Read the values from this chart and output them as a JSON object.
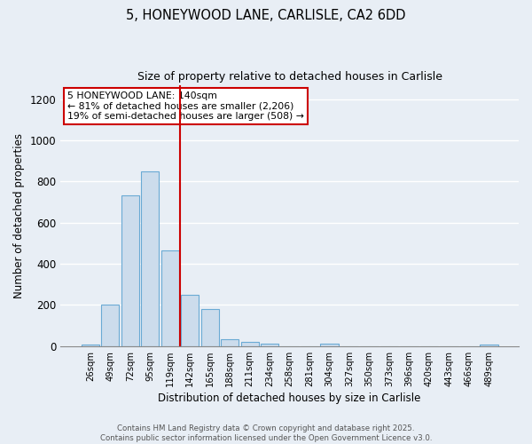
{
  "title_line1": "5, HONEYWOOD LANE, CARLISLE, CA2 6DD",
  "title_line2": "Size of property relative to detached houses in Carlisle",
  "xlabel": "Distribution of detached houses by size in Carlisle",
  "ylabel": "Number of detached properties",
  "categories": [
    "26sqm",
    "49sqm",
    "72sqm",
    "95sqm",
    "119sqm",
    "142sqm",
    "165sqm",
    "188sqm",
    "211sqm",
    "234sqm",
    "258sqm",
    "281sqm",
    "304sqm",
    "327sqm",
    "350sqm",
    "373sqm",
    "396sqm",
    "420sqm",
    "443sqm",
    "466sqm",
    "489sqm"
  ],
  "values": [
    10,
    200,
    735,
    850,
    465,
    250,
    180,
    35,
    20,
    12,
    0,
    0,
    12,
    0,
    0,
    0,
    0,
    0,
    0,
    0,
    8
  ],
  "bar_color": "#ccdcec",
  "bar_edge_color": "#6aaad4",
  "vline_color": "#cc0000",
  "vline_x": 4.5,
  "annotation_text": "5 HONEYWOOD LANE: 140sqm\n← 81% of detached houses are smaller (2,206)\n19% of semi-detached houses are larger (508) →",
  "annotation_box_facecolor": "#ffffff",
  "annotation_box_edgecolor": "#cc0000",
  "ylim": [
    0,
    1270
  ],
  "yticks": [
    0,
    200,
    400,
    600,
    800,
    1000,
    1200
  ],
  "background_color": "#e8eef5",
  "grid_color": "#ffffff",
  "footer_line1": "Contains HM Land Registry data © Crown copyright and database right 2025.",
  "footer_line2": "Contains public sector information licensed under the Open Government Licence v3.0."
}
